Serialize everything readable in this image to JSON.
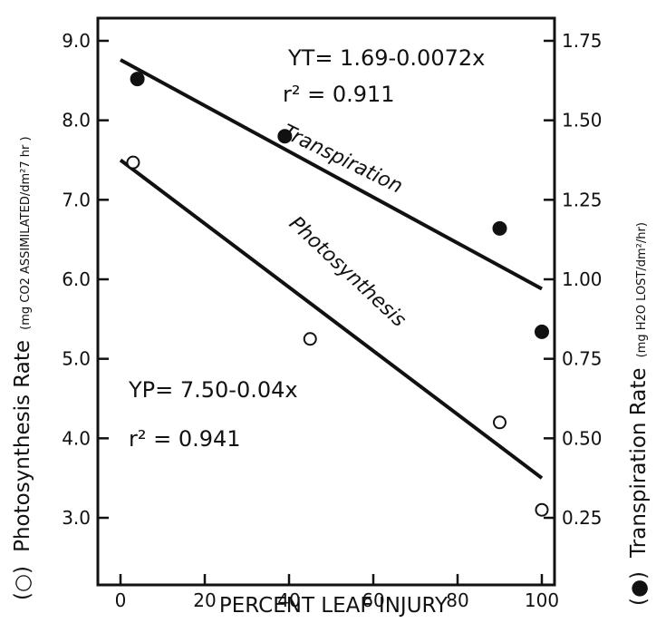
{
  "chart_data": {
    "type": "scatter",
    "xlabel": "PERCENT LEAF INJURY",
    "ylabel_left": {
      "marker": "(○)",
      "main": "Photosynthesis Rate",
      "unit": "(mg CO2 ASSIMILATED/dm²7 hr )"
    },
    "ylabel_right": {
      "marker": "(●)",
      "main": "Transpiration Rate",
      "unit": "(mg H2O LOST/dm²/hr)"
    },
    "xlim": [
      -5,
      102
    ],
    "ylim_left": [
      2.9,
      9.2
    ],
    "ylim_right": [
      0.25,
      1.75
    ],
    "x_ticks": [
      "0",
      "20",
      "40",
      "60",
      "80",
      "100"
    ],
    "y_left_ticks": [
      "3.0",
      "4.0",
      "5.0",
      "6.0",
      "7.0",
      "8.0",
      "9.0"
    ],
    "y_right_ticks": [
      "0.25",
      "0.50",
      "0.75",
      "1.00",
      "1.25",
      "1.50",
      "1.75"
    ],
    "grid": false,
    "series": [
      {
        "name": "Photosynthesis",
        "axis": "left",
        "marker": "open-circle",
        "points": [
          [
            3,
            7.47
          ],
          [
            45,
            5.25
          ],
          [
            90,
            4.2
          ],
          [
            100,
            3.1
          ]
        ],
        "fit": {
          "intercept": 7.5,
          "slope": -0.04,
          "x_range": [
            0,
            100
          ]
        },
        "equation": "YP= 7.50-0.04x",
        "r2": "r² = 0.941"
      },
      {
        "name": "Transpiration",
        "axis": "right",
        "marker": "filled-circle",
        "points": [
          [
            4,
            1.63
          ],
          [
            39,
            1.45
          ],
          [
            90,
            1.16
          ],
          [
            100,
            0.835
          ]
        ],
        "fit": {
          "intercept": 1.69,
          "slope": -0.0072,
          "x_range": [
            0,
            100
          ]
        },
        "equation": "YT= 1.69-0.0072x",
        "r2": "r² = 0.911"
      }
    ]
  }
}
